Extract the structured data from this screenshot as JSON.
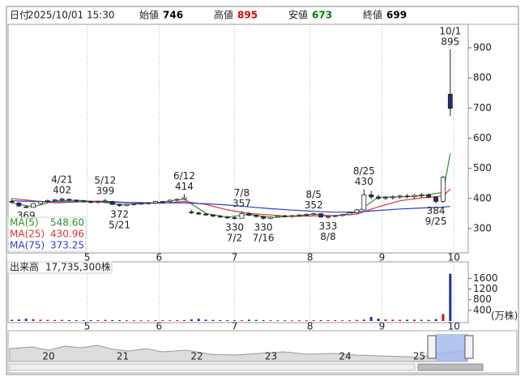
{
  "header": {
    "date_label": "日付",
    "date": "2025/10/01 15:30",
    "fields": [
      {
        "label": "始値",
        "value": 746,
        "color": "#000000"
      },
      {
        "label": "高値",
        "value": 895,
        "color": "#e00000"
      },
      {
        "label": "安値",
        "value": 673,
        "color": "#008000"
      },
      {
        "label": "終値",
        "value": 699,
        "color": "#000000"
      }
    ]
  },
  "chart_data": {
    "type": "candlestick",
    "x": [
      0,
      2,
      4,
      6,
      8,
      10,
      12,
      14,
      16,
      18,
      20,
      22,
      24,
      26,
      28,
      30,
      32,
      34,
      36,
      38,
      40,
      42,
      44,
      46,
      48,
      50,
      52,
      54,
      56,
      58,
      60,
      62,
      64,
      66,
      68,
      70,
      72,
      74,
      76,
      78,
      80,
      82,
      84,
      86,
      88,
      90,
      92,
      94,
      96,
      98,
      100,
      102,
      104,
      106,
      108,
      110,
      112,
      114,
      116,
      118,
      120,
      122
    ],
    "open": [
      390,
      385,
      372,
      370,
      383,
      390,
      393,
      395,
      397,
      394,
      392,
      389,
      388,
      390,
      390,
      380,
      376,
      380,
      382,
      384,
      385,
      388,
      390,
      394,
      397,
      355,
      352,
      348,
      345,
      341,
      338,
      336,
      334,
      350,
      344,
      340,
      334,
      338,
      342,
      340,
      343,
      345,
      347,
      349,
      338,
      340,
      343,
      346,
      352,
      362,
      412,
      405,
      400,
      403,
      405,
      408,
      406,
      410,
      412,
      404,
      390,
      746
    ],
    "high": [
      398,
      388,
      376,
      385,
      392,
      396,
      398,
      402,
      400,
      397,
      395,
      393,
      392,
      399,
      392,
      382,
      382,
      384,
      386,
      388,
      392,
      392,
      396,
      400,
      414,
      362,
      356,
      352,
      348,
      345,
      342,
      340,
      357,
      355,
      347,
      343,
      340,
      344,
      346,
      345,
      348,
      350,
      352,
      351,
      342,
      345,
      348,
      355,
      365,
      430,
      425,
      412,
      408,
      410,
      412,
      415,
      414,
      418,
      416,
      406,
      475,
      895
    ],
    "low": [
      384,
      372,
      369,
      370,
      380,
      386,
      388,
      390,
      392,
      388,
      386,
      384,
      383,
      386,
      378,
      372,
      374,
      376,
      378,
      380,
      382,
      384,
      387,
      390,
      394,
      348,
      345,
      342,
      338,
      335,
      332,
      330,
      333,
      342,
      336,
      330,
      331,
      335,
      337,
      336,
      339,
      340,
      343,
      336,
      333,
      337,
      340,
      344,
      350,
      360,
      398,
      395,
      394,
      396,
      398,
      400,
      398,
      402,
      400,
      384,
      386,
      673
    ],
    "close": [
      388,
      375,
      371,
      383,
      390,
      393,
      395,
      398,
      394,
      392,
      389,
      388,
      390,
      392,
      380,
      376,
      380,
      382,
      384,
      385,
      390,
      390,
      394,
      397,
      402,
      352,
      348,
      345,
      341,
      338,
      336,
      334,
      350,
      344,
      340,
      334,
      338,
      342,
      340,
      343,
      345,
      347,
      349,
      338,
      340,
      343,
      346,
      352,
      362,
      412,
      405,
      400,
      403,
      405,
      408,
      406,
      410,
      412,
      404,
      390,
      470,
      699
    ],
    "up_color": "#ffffff",
    "down_color": "#1c2f6e",
    "edge_color": "#222222",
    "xlim": [
      -1,
      127
    ],
    "xticks": [
      {
        "value": 21,
        "label": "5"
      },
      {
        "value": 41,
        "label": "6"
      },
      {
        "value": 62,
        "label": "7"
      },
      {
        "value": 83,
        "label": "8"
      },
      {
        "value": 103,
        "label": "9"
      },
      {
        "value": 123,
        "label": "10"
      }
    ],
    "ylim": [
      219,
      978
    ],
    "yticks": [
      300,
      400,
      500,
      600,
      700,
      800,
      900
    ],
    "grid": true,
    "ma": [
      {
        "name": "MA(5)",
        "color": "#2f8f2f",
        "legend_value": "548.60",
        "x": [
          0,
          6,
          12,
          18,
          24,
          30,
          36,
          42,
          48,
          54,
          60,
          66,
          72,
          78,
          84,
          90,
          96,
          102,
          108,
          114,
          120,
          122
        ],
        "values": [
          385,
          372,
          392,
          394,
          389,
          380,
          382,
          388,
          398,
          350,
          338,
          347,
          336,
          341,
          348,
          341,
          355,
          404,
          405,
          409,
          420,
          548.6
        ]
      },
      {
        "name": "MA(25)",
        "color": "#e03030",
        "legend_value": "430.96",
        "x": [
          0,
          6,
          12,
          18,
          24,
          30,
          36,
          42,
          48,
          54,
          60,
          66,
          72,
          78,
          84,
          90,
          96,
          102,
          108,
          114,
          120,
          122
        ],
        "values": [
          400,
          392,
          385,
          388,
          391,
          388,
          384,
          384,
          390,
          380,
          362,
          350,
          345,
          340,
          342,
          343,
          348,
          372,
          392,
          402,
          408,
          430.96
        ]
      },
      {
        "name": "MA(75)",
        "color": "#2a3fd0",
        "legend_value": "373.25",
        "x": [
          0,
          6,
          12,
          18,
          24,
          30,
          36,
          42,
          48,
          54,
          60,
          66,
          72,
          78,
          84,
          90,
          96,
          102,
          108,
          114,
          120,
          122
        ],
        "values": [
          392,
          390,
          389,
          389,
          388,
          387,
          386,
          385,
          385,
          382,
          378,
          372,
          366,
          361,
          357,
          354,
          355,
          360,
          365,
          368,
          371,
          373.25
        ]
      }
    ],
    "annotations": [
      {
        "date": "4/21",
        "value": 402,
        "x": 14,
        "side": "high"
      },
      {
        "value": 369,
        "x": 4,
        "side": "low"
      },
      {
        "date": "5/12",
        "value": 399,
        "x": 26,
        "side": "high"
      },
      {
        "date": "5/21",
        "value": 372,
        "x": 30,
        "side": "low"
      },
      {
        "date": "6/12",
        "value": 414,
        "x": 48,
        "side": "high"
      },
      {
        "date": "7/2",
        "value": 330,
        "x": 62,
        "side": "low"
      },
      {
        "date": "7/8",
        "value": 357,
        "x": 64,
        "side": "high"
      },
      {
        "date": "7/16",
        "value": 330,
        "x": 70,
        "side": "low"
      },
      {
        "date": "8/5",
        "value": 352,
        "x": 84,
        "side": "high"
      },
      {
        "date": "8/8",
        "value": 333,
        "x": 88,
        "side": "low"
      },
      {
        "date": "8/25",
        "value": 430,
        "x": 98,
        "side": "high"
      },
      {
        "date": "9/25",
        "value": 384,
        "x": 118,
        "side": "low"
      },
      {
        "date": "10/1",
        "value": 895,
        "x": 122,
        "side": "high"
      }
    ],
    "volume": {
      "title": "出来高",
      "total": "17,735,300株",
      "unit": "(万株)",
      "values": [
        45,
        60,
        85,
        70,
        50,
        40,
        38,
        42,
        35,
        30,
        28,
        30,
        32,
        40,
        35,
        30,
        28,
        26,
        25,
        24,
        30,
        28,
        26,
        30,
        35,
        60,
        80,
        50,
        40,
        35,
        30,
        28,
        32,
        50,
        40,
        30,
        28,
        26,
        25,
        24,
        26,
        28,
        30,
        35,
        32,
        30,
        28,
        30,
        40,
        55,
        150,
        90,
        60,
        50,
        45,
        48,
        52,
        45,
        40,
        70,
        260,
        1773.53
      ],
      "ylim": [
        0,
        2222
      ],
      "yticks": [
        400,
        800,
        1200,
        1600
      ],
      "up_color": "#d01010",
      "down_color": "#1a2fa0"
    }
  },
  "navigator": {
    "labels": [
      "20",
      "21",
      "22",
      "23",
      "24",
      "25"
    ]
  }
}
